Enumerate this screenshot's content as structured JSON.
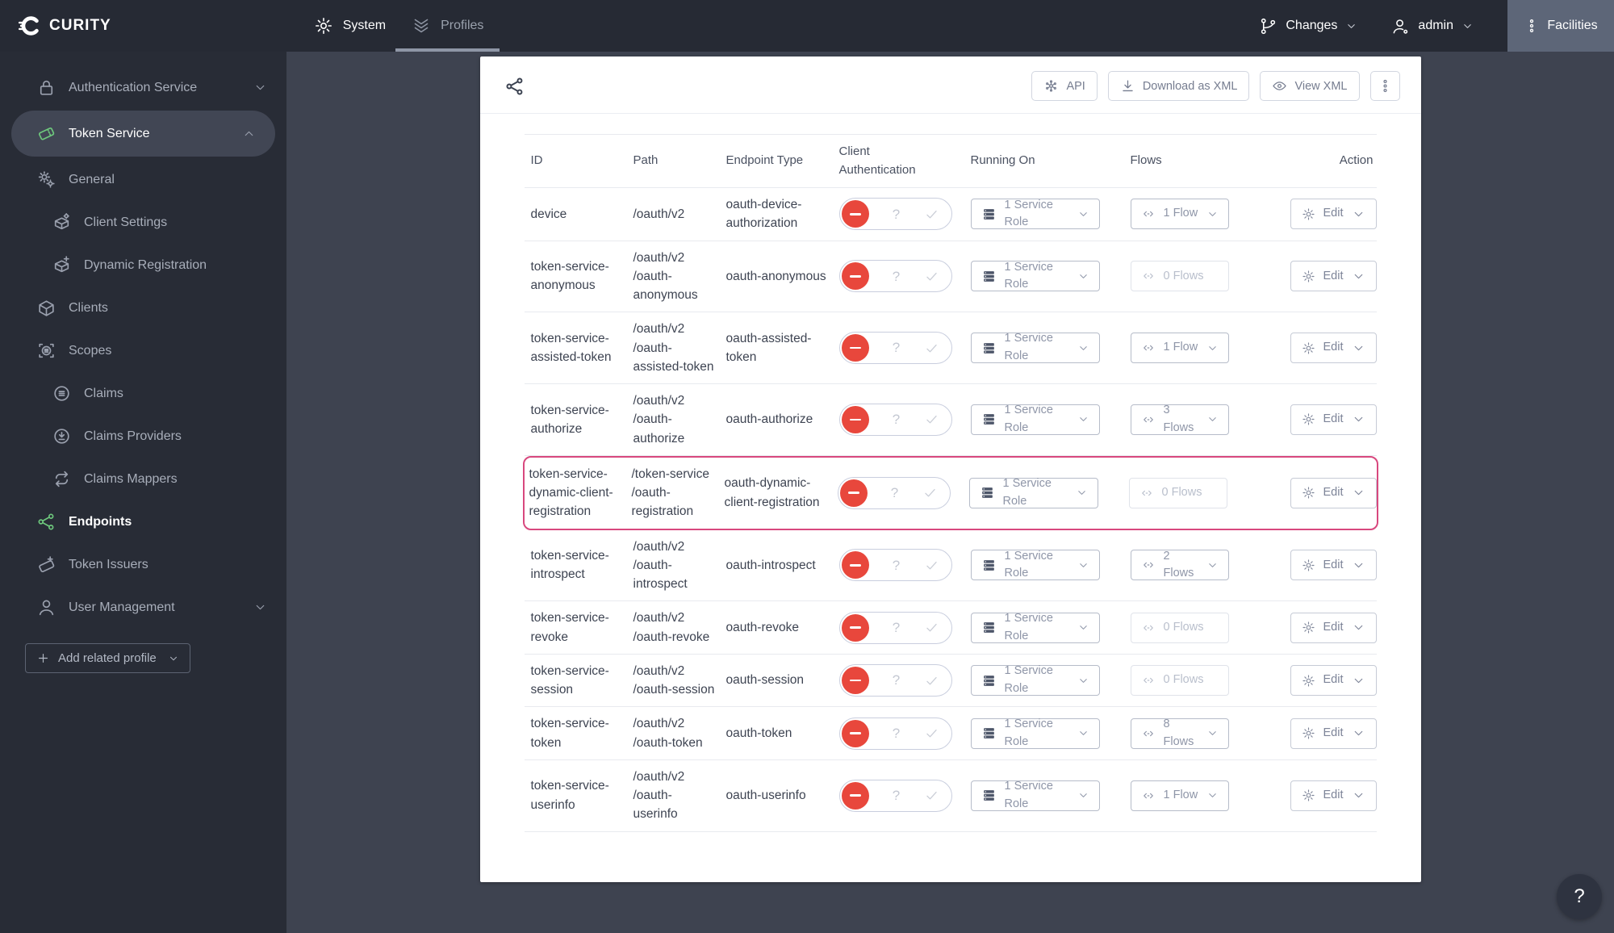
{
  "topbar": {
    "brand": "CURITY",
    "nav": [
      {
        "label": "System"
      },
      {
        "label": "Profiles"
      }
    ],
    "changes_label": "Changes",
    "admin_label": "admin",
    "facilities_label": "Facilities"
  },
  "sidebar": {
    "items": [
      {
        "label": "Authentication Service"
      },
      {
        "label": "Token Service"
      },
      {
        "label": "General"
      },
      {
        "label": "Client Settings"
      },
      {
        "label": "Dynamic Registration"
      },
      {
        "label": "Clients"
      },
      {
        "label": "Scopes"
      },
      {
        "label": "Claims"
      },
      {
        "label": "Claims Providers"
      },
      {
        "label": "Claims Mappers"
      },
      {
        "label": "Endpoints"
      },
      {
        "label": "Token Issuers"
      },
      {
        "label": "User Management"
      }
    ],
    "add_related_profile_label": "Add related profile"
  },
  "toolbar": {
    "api_label": "API",
    "download_label": "Download as XML",
    "view_xml_label": "View XML"
  },
  "table": {
    "columns": [
      "ID",
      "Path",
      "Endpoint Type",
      "Client Authentication",
      "Running On",
      "Flows",
      "Action"
    ],
    "edit_label": "Edit",
    "rows": [
      {
        "id": "device",
        "path": "/oauth/v2",
        "endpoint_type": "oauth-device-authorization",
        "running_on": "1 Service Role",
        "flows": "1 Flow",
        "flows_empty": false,
        "highlighted": false
      },
      {
        "id": "token-service-anonymous",
        "path": "/oauth/v2/oauth-anonymous",
        "endpoint_type": "oauth-anonymous",
        "running_on": "1 Service Role",
        "flows": "0 Flows",
        "flows_empty": true,
        "highlighted": false
      },
      {
        "id": "token-service-assisted-token",
        "path": "/oauth/v2/oauth-assisted-token",
        "endpoint_type": "oauth-assisted-token",
        "running_on": "1 Service Role",
        "flows": "1 Flow",
        "flows_empty": false,
        "highlighted": false
      },
      {
        "id": "token-service-authorize",
        "path": "/oauth/v2/oauth-authorize",
        "endpoint_type": "oauth-authorize",
        "running_on": "1 Service Role",
        "flows": "3 Flows",
        "flows_empty": false,
        "highlighted": false
      },
      {
        "id": "token-service-dynamic-client-registration",
        "path": "/token-service/oauth-registration",
        "endpoint_type": "oauth-dynamic-client-registration",
        "running_on": "1 Service Role",
        "flows": "0 Flows",
        "flows_empty": true,
        "highlighted": true
      },
      {
        "id": "token-service-introspect",
        "path": "/oauth/v2/oauth-introspect",
        "endpoint_type": "oauth-introspect",
        "running_on": "1 Service Role",
        "flows": "2 Flows",
        "flows_empty": false,
        "highlighted": false
      },
      {
        "id": "token-service-revoke",
        "path": "/oauth/v2/oauth-revoke",
        "endpoint_type": "oauth-revoke",
        "running_on": "1 Service Role",
        "flows": "0 Flows",
        "flows_empty": true,
        "highlighted": false
      },
      {
        "id": "token-service-session",
        "path": "/oauth/v2/oauth-session",
        "endpoint_type": "oauth-session",
        "running_on": "1 Service Role",
        "flows": "0 Flows",
        "flows_empty": true,
        "highlighted": false
      },
      {
        "id": "token-service-token",
        "path": "/oauth/v2/oauth-token",
        "endpoint_type": "oauth-token",
        "running_on": "1 Service Role",
        "flows": "8 Flows",
        "flows_empty": false,
        "highlighted": false
      },
      {
        "id": "token-service-userinfo",
        "path": "/oauth/v2/oauth-userinfo",
        "endpoint_type": "oauth-userinfo",
        "running_on": "1 Service Role",
        "flows": "1 Flow",
        "flows_empty": false,
        "highlighted": false
      }
    ]
  },
  "help_label": "?",
  "colors": {
    "topbar_bg": "#262a34",
    "sidebar_bg": "#282c36",
    "page_bg": "#3e4350",
    "accent_green": "#6ec87d",
    "toggle_red": "#e8473c",
    "highlight_pink": "#d8487e",
    "facilities_bg": "#5d6678"
  }
}
